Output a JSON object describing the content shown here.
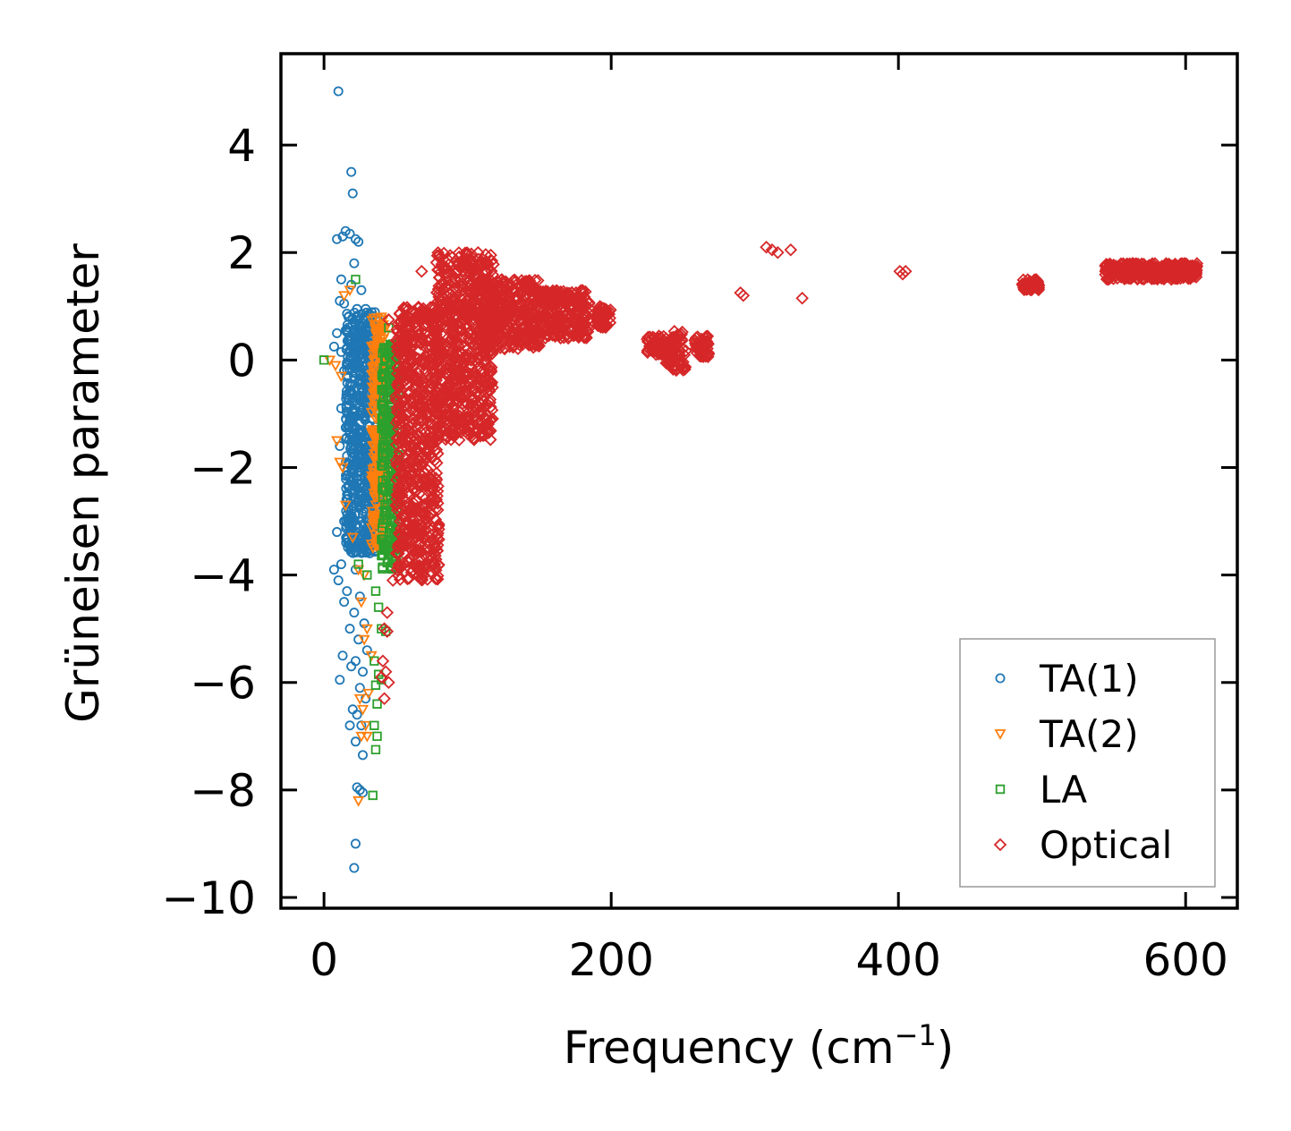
{
  "chart_data": {
    "type": "scatter",
    "title": "",
    "xlabel": "Frequency (cm",
    "xlabel_sup": "−1",
    "xlabel_suffix": ")",
    "ylabel": "Grüneisen parameter",
    "xlim": [
      -30,
      636
    ],
    "ylim": [
      -10.2,
      5.7
    ],
    "xticks": [
      0,
      200,
      400,
      600
    ],
    "xtick_labels": [
      "0",
      "200",
      "400",
      "600"
    ],
    "yticks": [
      -10,
      -8,
      -6,
      -4,
      -2,
      0,
      2,
      4
    ],
    "ytick_labels": [
      "−10",
      "−8",
      "−6",
      "−4",
      "−2",
      "0",
      "2",
      "4"
    ],
    "grid": false,
    "legend_position": "bottom-right",
    "colors": {
      "TA(1)": "#1f77b4",
      "TA(2)": "#ff7f0e",
      "LA": "#2ca02c",
      "Optical": "#d62728"
    },
    "series": [
      {
        "name": "TA(1)",
        "marker": "circle",
        "color": "#1f77b4",
        "points": [
          [
            10,
            5.0
          ],
          [
            19,
            3.5
          ],
          [
            20,
            3.1
          ],
          [
            15,
            2.4
          ],
          [
            13,
            2.3
          ],
          [
            18,
            2.35
          ],
          [
            22,
            2.25
          ],
          [
            24,
            2.2
          ],
          [
            9,
            2.25
          ],
          [
            21,
            1.8
          ],
          [
            12,
            1.5
          ],
          [
            19,
            1.4
          ],
          [
            26,
            1.3
          ],
          [
            11,
            1.1
          ],
          [
            14,
            1.05
          ],
          [
            23,
            0.95
          ],
          [
            17,
            0.8
          ],
          [
            29,
            0.95
          ],
          [
            15,
            0.55
          ],
          [
            20,
            0.5
          ],
          [
            9,
            0.5
          ],
          [
            7,
            0.25
          ],
          [
            12,
            0.15
          ],
          [
            25,
            0.4
          ],
          [
            31,
            0.3
          ],
          [
            14,
            -0.2
          ],
          [
            28,
            -0.3
          ],
          [
            12,
            -0.9
          ],
          [
            30,
            -1.0
          ],
          [
            11,
            -1.6
          ],
          [
            27,
            -1.5
          ],
          [
            32,
            -2.2
          ],
          [
            16,
            -2.5
          ],
          [
            14,
            -3.0
          ],
          [
            9,
            -3.2
          ],
          [
            19,
            -3.5
          ],
          [
            12,
            -3.8
          ],
          [
            7,
            -3.9
          ],
          [
            22,
            -3.9
          ],
          [
            10,
            -4.1
          ],
          [
            16,
            -4.3
          ],
          [
            25,
            -4.4
          ],
          [
            14,
            -4.5
          ],
          [
            21,
            -4.7
          ],
          [
            28,
            -4.9
          ],
          [
            18,
            -5.0
          ],
          [
            24,
            -5.2
          ],
          [
            30,
            -5.4
          ],
          [
            13,
            -5.5
          ],
          [
            22,
            -5.6
          ],
          [
            19,
            -5.7
          ],
          [
            27,
            -5.8
          ],
          [
            11,
            -5.95
          ],
          [
            25,
            -6.1
          ],
          [
            29,
            -6.3
          ],
          [
            20,
            -6.5
          ],
          [
            23,
            -6.6
          ],
          [
            26,
            -6.8
          ],
          [
            18,
            -6.8
          ],
          [
            22,
            -7.1
          ],
          [
            27,
            -7.35
          ],
          [
            23,
            -7.95
          ],
          [
            25,
            -8.0
          ],
          [
            27,
            -8.05
          ],
          [
            22,
            -9.0
          ],
          [
            21,
            -9.45
          ]
        ],
        "bands": [
          {
            "x": [
              15,
              38
            ],
            "y": [
              -3.6,
              0.9
            ],
            "n": 700
          }
        ]
      },
      {
        "name": "TA(2)",
        "marker": "triangle-down",
        "color": "#ff7f0e",
        "points": [
          [
            4,
            0.0
          ],
          [
            8,
            -0.1
          ],
          [
            12,
            -0.3
          ],
          [
            18,
            1.3
          ],
          [
            14,
            1.2
          ],
          [
            9,
            -1.5
          ],
          [
            11,
            -1.9
          ],
          [
            13,
            -2.0
          ],
          [
            15,
            -2.7
          ],
          [
            20,
            -3.3
          ],
          [
            24,
            -3.9
          ],
          [
            28,
            -4.0
          ],
          [
            26,
            -4.5
          ],
          [
            30,
            -5.0
          ],
          [
            28,
            -5.2
          ],
          [
            33,
            -5.5
          ],
          [
            31,
            -6.2
          ],
          [
            25,
            -6.3
          ],
          [
            27,
            -6.5
          ],
          [
            29,
            -6.8
          ],
          [
            30,
            -7.0
          ],
          [
            24,
            -8.2
          ],
          [
            40,
            0.8
          ],
          [
            36,
            0.5
          ],
          [
            26,
            -7.0
          ]
        ],
        "bands": [
          {
            "x": [
              33,
              43
            ],
            "y": [
              -3.5,
              0.8
            ],
            "n": 260
          }
        ]
      },
      {
        "name": "LA",
        "marker": "square",
        "color": "#2ca02c",
        "points": [
          [
            0,
            0.0
          ],
          [
            22,
            1.5
          ],
          [
            24,
            -3.8
          ],
          [
            30,
            -4.0
          ],
          [
            36,
            -4.3
          ],
          [
            38,
            -4.6
          ],
          [
            40,
            -5.0
          ],
          [
            43,
            -5.05
          ],
          [
            35,
            -5.6
          ],
          [
            38,
            -5.85
          ],
          [
            40,
            -5.95
          ],
          [
            36,
            -6.05
          ],
          [
            37,
            -6.4
          ],
          [
            35,
            -6.8
          ],
          [
            37,
            -7.0
          ],
          [
            36,
            -7.25
          ],
          [
            34,
            -8.1
          ],
          [
            45,
            0.6
          ],
          [
            47,
            0.2
          ]
        ],
        "bands": [
          {
            "x": [
              40,
              52
            ],
            "y": [
              -3.9,
              0.3
            ],
            "n": 300
          }
        ]
      },
      {
        "name": "Optical",
        "marker": "diamond",
        "color": "#d62728",
        "points": [
          [
            68,
            1.65
          ],
          [
            45,
            0.75
          ],
          [
            42,
            -5.0
          ],
          [
            44,
            -5.05
          ],
          [
            41,
            -5.6
          ],
          [
            43,
            -5.8
          ],
          [
            40,
            -5.9
          ],
          [
            45,
            -6.0
          ],
          [
            42,
            -6.3
          ],
          [
            44,
            -4.7
          ],
          [
            48,
            -4.1
          ],
          [
            52,
            -3.6
          ],
          [
            58,
            -3.0
          ],
          [
            63,
            -2.4
          ],
          [
            75,
            -1.8
          ],
          [
            90,
            -0.9
          ],
          [
            95,
            -0.6
          ],
          [
            290,
            1.25
          ],
          [
            292,
            1.2
          ],
          [
            308,
            2.1
          ],
          [
            312,
            2.05
          ],
          [
            316,
            2.0
          ],
          [
            325,
            2.05
          ],
          [
            333,
            1.15
          ],
          [
            401,
            1.65
          ],
          [
            403,
            1.6
          ],
          [
            405,
            1.65
          ]
        ],
        "bands": [
          {
            "x": [
              50,
              80
            ],
            "y": [
              -4.1,
              1.0
            ],
            "n": 700
          },
          {
            "x": [
              78,
              118
            ],
            "y": [
              -1.5,
              2.0
            ],
            "n": 700
          },
          {
            "x": [
              110,
              150
            ],
            "y": [
              0.2,
              1.5
            ],
            "n": 350
          },
          {
            "x": [
              150,
              185
            ],
            "y": [
              0.4,
              1.3
            ],
            "n": 250
          },
          {
            "x": [
              190,
              200
            ],
            "y": [
              0.6,
              1.0
            ],
            "n": 60
          },
          {
            "x": [
              225,
              237
            ],
            "y": [
              0.1,
              0.45
            ],
            "n": 50
          },
          {
            "x": [
              238,
              252
            ],
            "y": [
              -0.2,
              0.55
            ],
            "n": 90
          },
          {
            "x": [
              258,
              268
            ],
            "y": [
              0.05,
              0.45
            ],
            "n": 50
          },
          {
            "x": [
              486,
              498
            ],
            "y": [
              1.3,
              1.5
            ],
            "n": 60
          },
          {
            "x": [
              544,
              608
            ],
            "y": [
              1.5,
              1.8
            ],
            "n": 350
          }
        ]
      }
    ]
  }
}
